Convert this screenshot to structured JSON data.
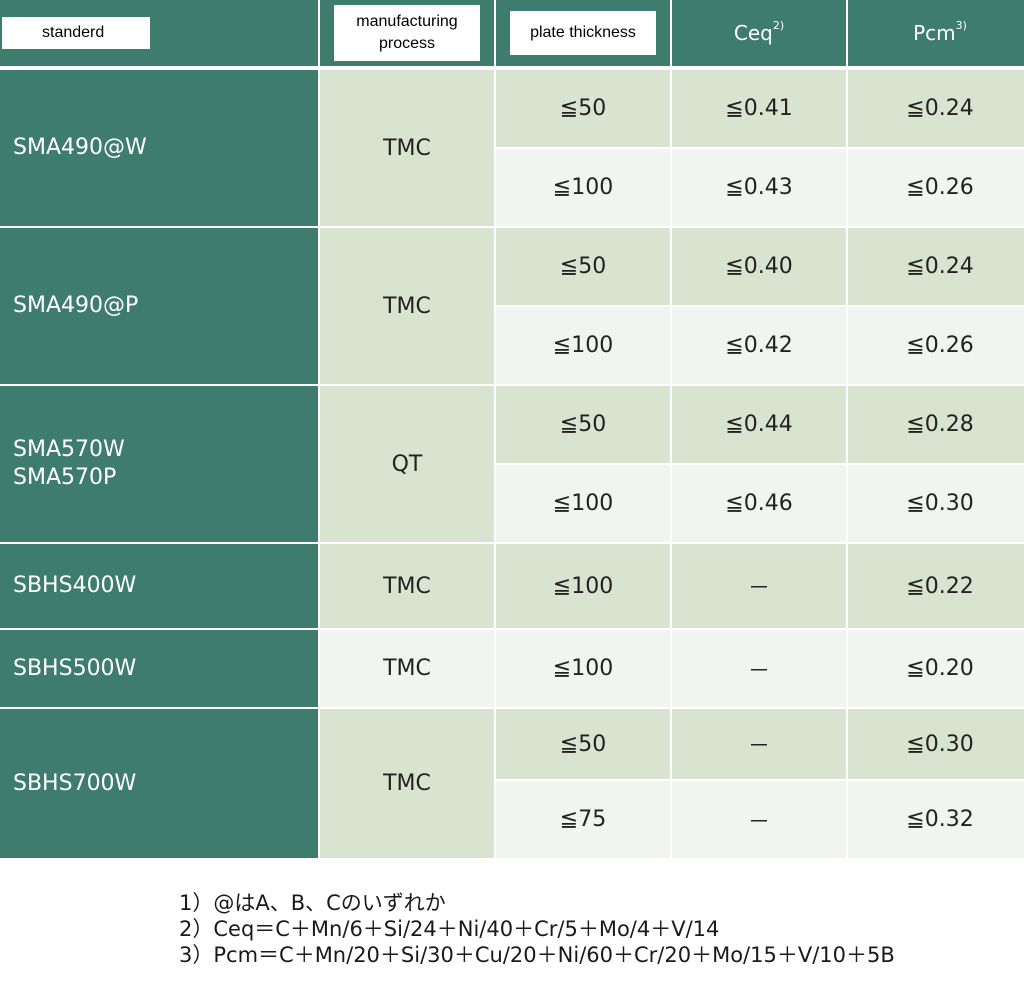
{
  "header": {
    "standard": "standerd",
    "process": "manufacturing process",
    "thickness": "plate thickness",
    "ceq": "Ceq",
    "ceq_sup": "2)",
    "pcm": "Pcm",
    "pcm_sup": "3)"
  },
  "groups": [
    {
      "standard": "SMA490@W",
      "process": "TMC",
      "rows": [
        {
          "thickness": "≦50",
          "ceq": "≦0.41",
          "pcm": "≦0.24"
        },
        {
          "thickness": "≦100",
          "ceq": "≦0.43",
          "pcm": "≦0.26"
        }
      ]
    },
    {
      "standard": "SMA490@P",
      "process": "TMC",
      "rows": [
        {
          "thickness": "≦50",
          "ceq": "≦0.40",
          "pcm": "≦0.24"
        },
        {
          "thickness": "≦100",
          "ceq": "≦0.42",
          "pcm": "≦0.26"
        }
      ]
    },
    {
      "standard": "SMA570W\nSMA570P",
      "process": "QT",
      "rows": [
        {
          "thickness": "≦50",
          "ceq": "≦0.44",
          "pcm": "≦0.28"
        },
        {
          "thickness": "≦100",
          "ceq": "≦0.46",
          "pcm": "≦0.30"
        }
      ]
    },
    {
      "standard": "SBHS400W",
      "process": "TMC",
      "rows": [
        {
          "thickness": "≦100",
          "ceq": "－",
          "pcm": "≦0.22"
        }
      ]
    },
    {
      "standard": "SBHS500W",
      "process": "TMC",
      "rows": [
        {
          "thickness": "≦100",
          "ceq": "－",
          "pcm": "≦0.20"
        }
      ]
    },
    {
      "standard": "SBHS700W",
      "process": "TMC",
      "rows": [
        {
          "thickness": "≦50",
          "ceq": "－",
          "pcm": "≦0.30"
        },
        {
          "thickness": "≦75",
          "ceq": "－",
          "pcm": "≦0.32"
        }
      ]
    }
  ],
  "notes": [
    "1）@はA、B、Cのいずれか",
    "2）Ceq＝C＋Mn/6＋Si/24＋Ni/40＋Cr/5＋Mo/4＋V/14",
    "3）Pcm＝C＋Mn/20＋Si/30＋Cu/20＋Ni/60＋Cr/20＋Mo/15＋V/10＋5B"
  ]
}
